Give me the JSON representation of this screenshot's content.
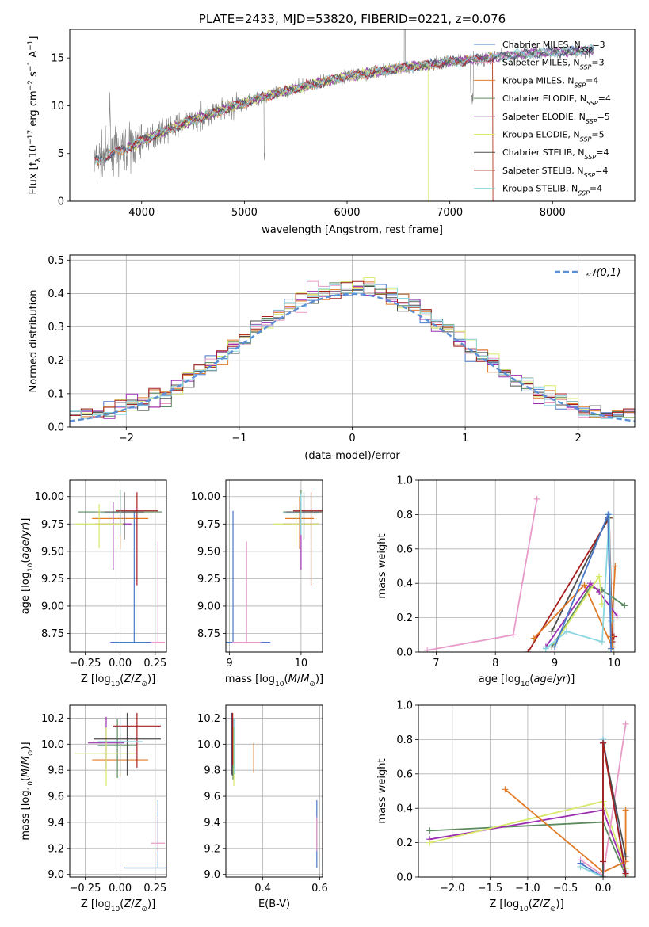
{
  "colors": {
    "spectrum": "#808080",
    "chabrier_miles": "#4a78c9",
    "salpeter_miles": "#e89bc8",
    "kroupa_miles": "#e07b28",
    "chabrier_elodie": "#5b8a5e",
    "salpeter_elodie": "#9b2fb0",
    "kroupa_elodie": "#d8e86a",
    "chabrier_stelib": "#4d4d4d",
    "salpeter_stelib": "#a51f1f",
    "kroupa_stelib": "#8ad6e0",
    "normal_curve": "#5b8fd6"
  },
  "chart_data": [
    {
      "id": "spectrum",
      "type": "line",
      "title": "PLATE=2433, MJD=53820, FIBERID=0221, z=0.076",
      "xlabel": "wavelength [Angstrom, rest frame]",
      "ylabel": "Flux [f_λ 10^-17 erg cm^-2 s^-1 A^-1]",
      "xlim": [
        3300,
        8800
      ],
      "ylim": [
        0,
        18
      ],
      "xticks": [
        4000,
        5000,
        6000,
        7000,
        8000
      ],
      "yticks": [
        0,
        5,
        10,
        15
      ],
      "grid": false,
      "legend_position": "top-right",
      "legend": [
        {
          "label": "Chabrier MILES, N",
          "sub": "SSP",
          "post": "=3",
          "color_key": "chabrier_miles"
        },
        {
          "label": "Salpeter MILES, N",
          "sub": "SSP",
          "post": "=3",
          "color_key": "salpeter_miles"
        },
        {
          "label": "Kroupa MILES, N",
          "sub": "SSP",
          "post": "=4",
          "color_key": "kroupa_miles"
        },
        {
          "label": "Chabrier ELODIE, N",
          "sub": "SSP",
          "post": "=4",
          "color_key": "chabrier_elodie"
        },
        {
          "label": "Salpeter ELODIE, N",
          "sub": "SSP",
          "post": "=5",
          "color_key": "salpeter_elodie"
        },
        {
          "label": "Kroupa ELODIE, N",
          "sub": "SSP",
          "post": "=5",
          "color_key": "kroupa_elodie"
        },
        {
          "label": "Chabrier STELIB, N",
          "sub": "SSP",
          "post": "=4",
          "color_key": "chabrier_stelib"
        },
        {
          "label": "Salpeter STELIB, N",
          "sub": "SSP",
          "post": "=4",
          "color_key": "salpeter_stelib"
        },
        {
          "label": "Kroupa STELIB, N",
          "sub": "SSP",
          "post": "=4",
          "color_key": "kroupa_stelib"
        }
      ],
      "continuum": {
        "x": [
          3540,
          3700,
          3900,
          4100,
          4300,
          4500,
          4800,
          5000,
          5200,
          5500,
          5800,
          6000,
          6300,
          6500,
          6800,
          7000,
          7200,
          7400,
          7600,
          7800,
          8000,
          8200,
          8400
        ],
        "y": [
          4.2,
          4.9,
          5.8,
          6.8,
          7.7,
          8.5,
          9.6,
          10.3,
          11.0,
          11.8,
          12.6,
          13.1,
          13.6,
          13.9,
          14.3,
          14.6,
          14.8,
          15.0,
          15.3,
          15.5,
          15.6,
          15.7,
          15.8
        ]
      }
    },
    {
      "id": "residuals",
      "type": "histogram",
      "xlabel": "(data-model)/error",
      "ylabel": "Normed distribution",
      "xlim": [
        -2.5,
        2.5
      ],
      "ylim": [
        0,
        0.515
      ],
      "xticks": [
        -2,
        -1,
        0,
        1,
        2
      ],
      "yticks": [
        0.0,
        0.1,
        0.2,
        0.3,
        0.4,
        0.5
      ],
      "grid": true,
      "legend_position": "top-right",
      "legend": [
        {
          "label": "𝒩(0,1)",
          "color_key": "normal_curve",
          "style": "dashed"
        }
      ]
    },
    {
      "id": "age_vs_Z",
      "type": "errorbar",
      "xlabel": "Z [log10(Z/Z⊙)]",
      "ylabel": "age [log10(age/yr)]",
      "xlim": [
        -0.36,
        0.33
      ],
      "ylim": [
        8.58,
        10.15
      ],
      "xticks": [
        -0.25,
        0.0,
        0.25
      ],
      "xtick_labels": [
        "−0.25",
        "0.00",
        "0.25"
      ],
      "yticks": [
        8.75,
        9.0,
        9.25,
        9.5,
        9.75,
        10.0
      ],
      "grid": true,
      "series": [
        {
          "color_key": "chabrier_miles",
          "x": 0.1,
          "y": 8.67,
          "xerr": 0.17,
          "yerr_lo": 0.0,
          "yerr_hi": 1.2
        },
        {
          "color_key": "salpeter_miles",
          "x": 0.27,
          "y": 8.67,
          "xerr": 0.05,
          "yerr_lo": 0.0,
          "yerr_hi": 0.92
        },
        {
          "color_key": "kroupa_miles",
          "x": 0.0,
          "y": 9.8,
          "xerr": 0.2,
          "yerr_lo": 0.28,
          "yerr_hi": 0.2
        },
        {
          "color_key": "chabrier_elodie",
          "x": 0.0,
          "y": 9.86,
          "xerr": 0.3,
          "yerr_lo": 0.21,
          "yerr_hi": 0.2
        },
        {
          "color_key": "salpeter_elodie",
          "x": -0.05,
          "y": 9.75,
          "xerr": 0.13,
          "yerr_lo": 0.42,
          "yerr_hi": 0.2
        },
        {
          "color_key": "kroupa_elodie",
          "x": -0.15,
          "y": 9.75,
          "xerr": 0.17,
          "yerr_lo": 0.22,
          "yerr_hi": 0.18
        },
        {
          "color_key": "chabrier_stelib",
          "x": 0.03,
          "y": 9.86,
          "xerr": 0.14,
          "yerr_lo": 0.25,
          "yerr_hi": 0.18
        },
        {
          "color_key": "salpeter_stelib",
          "x": 0.12,
          "y": 9.87,
          "xerr": 0.15,
          "yerr_lo": 0.68,
          "yerr_hi": 0.17
        },
        {
          "color_key": "kroupa_stelib",
          "x": 0.0,
          "y": 9.85,
          "xerr": 0.14,
          "yerr_lo": 0.2,
          "yerr_hi": 0.18
        }
      ]
    },
    {
      "id": "age_vs_mass",
      "type": "errorbar",
      "xlabel": "mass [log10(M/M⊙)]",
      "ylabel": "",
      "xlim": [
        8.95,
        10.3
      ],
      "ylim": [
        8.58,
        10.15
      ],
      "xticks": [
        9,
        10
      ],
      "yticks": [
        8.75,
        9.0,
        9.25,
        9.5,
        9.75,
        10.0
      ],
      "grid": true,
      "series": [
        {
          "color_key": "chabrier_miles",
          "x": 9.05,
          "y": 8.67,
          "xerr": 0.52,
          "yerr_lo": 0.0,
          "yerr_hi": 1.2
        },
        {
          "color_key": "salpeter_miles",
          "x": 9.24,
          "y": 8.67,
          "xerr": 0.2,
          "yerr_lo": 0.0,
          "yerr_hi": 0.92
        },
        {
          "color_key": "kroupa_miles",
          "x": 9.98,
          "y": 9.8,
          "xerr": 0.2,
          "yerr_lo": 0.28,
          "yerr_hi": 0.2
        },
        {
          "color_key": "chabrier_elodie",
          "x": 10.0,
          "y": 9.86,
          "xerr": 0.25,
          "yerr_lo": 0.21,
          "yerr_hi": 0.2
        },
        {
          "color_key": "salpeter_elodie",
          "x": 10.0,
          "y": 9.75,
          "xerr": 0.25,
          "yerr_lo": 0.42,
          "yerr_hi": 0.2
        },
        {
          "color_key": "kroupa_elodie",
          "x": 9.93,
          "y": 9.75,
          "xerr": 0.32,
          "yerr_lo": 0.22,
          "yerr_hi": 0.18
        },
        {
          "color_key": "chabrier_stelib",
          "x": 10.04,
          "y": 9.86,
          "xerr": 0.25,
          "yerr_lo": 0.25,
          "yerr_hi": 0.18
        },
        {
          "color_key": "salpeter_stelib",
          "x": 10.14,
          "y": 9.87,
          "xerr": 0.25,
          "yerr_lo": 0.68,
          "yerr_hi": 0.17
        },
        {
          "color_key": "kroupa_stelib",
          "x": 10.0,
          "y": 9.85,
          "xerr": 0.25,
          "yerr_lo": 0.2,
          "yerr_hi": 0.18
        }
      ]
    },
    {
      "id": "mass_weight_vs_age",
      "type": "line",
      "xlabel": "age [log10(age/yr)]",
      "ylabel": "mass weight",
      "xlim": [
        6.7,
        10.35
      ],
      "ylim": [
        0,
        1.0
      ],
      "xticks": [
        7,
        8,
        9,
        10
      ],
      "yticks": [
        0.0,
        0.2,
        0.4,
        0.6,
        0.8,
        1.0
      ],
      "grid": true,
      "series": [
        {
          "color_key": "salpeter_miles",
          "x": [
            6.85,
            8.3,
            8.7
          ],
          "y": [
            0.01,
            0.1,
            0.89
          ]
        },
        {
          "color_key": "salpeter_stelib",
          "x": [
            8.55,
            9.92,
            9.97,
            10.0
          ],
          "y": [
            0.0,
            0.78,
            0.06,
            0.09
          ]
        },
        {
          "color_key": "chabrier_stelib",
          "x": [
            8.95,
            9.9,
            9.95
          ],
          "y": [
            0.12,
            0.78,
            0.09
          ]
        },
        {
          "color_key": "kroupa_miles",
          "x": [
            8.65,
            9.5,
            9.97,
            9.95,
            10.02
          ],
          "y": [
            0.08,
            0.39,
            0.03,
            0.09,
            0.5
          ]
        },
        {
          "color_key": "chabrier_elodie",
          "x": [
            8.95,
            9.6,
            9.8,
            10.18
          ],
          "y": [
            0.03,
            0.38,
            0.36,
            0.27
          ]
        },
        {
          "color_key": "salpeter_elodie",
          "x": [
            8.85,
            9.6,
            9.75,
            10.05
          ],
          "y": [
            0.03,
            0.4,
            0.35,
            0.21
          ]
        },
        {
          "color_key": "kroupa_elodie",
          "x": [
            9.0,
            9.75,
            9.8
          ],
          "y": [
            0.05,
            0.44,
            0.28
          ]
        },
        {
          "color_key": "kroupa_stelib",
          "x": [
            8.85,
            9.2,
            9.8,
            9.92,
            9.95
          ],
          "y": [
            0.02,
            0.12,
            0.06,
            0.8,
            0.18
          ]
        },
        {
          "color_key": "chabrier_miles",
          "x": [
            9.0,
            9.9,
            9.95
          ],
          "y": [
            0.03,
            0.8,
            0.02
          ]
        }
      ]
    },
    {
      "id": "mass_vs_Z",
      "type": "errorbar",
      "xlabel": "Z [log10(Z/Z⊙)]",
      "ylabel": "mass [log10(M/M⊙)]",
      "xlim": [
        -0.36,
        0.33
      ],
      "ylim": [
        8.98,
        10.3
      ],
      "xticks": [
        -0.25,
        0.0,
        0.25
      ],
      "xtick_labels": [
        "−0.25",
        "0.00",
        "0.25"
      ],
      "yticks": [
        9.0,
        9.2,
        9.4,
        9.6,
        9.8,
        10.0,
        10.2
      ],
      "grid": true,
      "series": [
        {
          "color_key": "chabrier_miles",
          "x": 0.27,
          "y": 9.05,
          "xerr": 0.24,
          "yerr_lo": 0.0,
          "yerr_hi": 0.52
        },
        {
          "color_key": "salpeter_miles",
          "x": 0.27,
          "y": 9.24,
          "xerr": 0.05,
          "yerr_lo": 0.06,
          "yerr_hi": 0.2
        },
        {
          "color_key": "kroupa_miles",
          "x": 0.0,
          "y": 9.88,
          "xerr": 0.2,
          "yerr_lo": 0.13,
          "yerr_hi": 0.2
        },
        {
          "color_key": "chabrier_elodie",
          "x": -0.02,
          "y": 9.99,
          "xerr": 0.14,
          "yerr_lo": 0.25,
          "yerr_hi": 0.2
        },
        {
          "color_key": "salpeter_elodie",
          "x": -0.1,
          "y": 10.01,
          "xerr": 0.13,
          "yerr_lo": 0.2,
          "yerr_hi": 0.2
        },
        {
          "color_key": "kroupa_elodie",
          "x": -0.1,
          "y": 9.93,
          "xerr": 0.22,
          "yerr_lo": 0.25,
          "yerr_hi": 0.2
        },
        {
          "color_key": "chabrier_stelib",
          "x": 0.05,
          "y": 10.04,
          "xerr": 0.24,
          "yerr_lo": 0.28,
          "yerr_hi": 0.2
        },
        {
          "color_key": "salpeter_stelib",
          "x": 0.12,
          "y": 10.14,
          "xerr": 0.17,
          "yerr_lo": 0.32,
          "yerr_hi": 0.1
        },
        {
          "color_key": "kroupa_stelib",
          "x": 0.0,
          "y": 10.02,
          "xerr": 0.16,
          "yerr_lo": 0.25,
          "yerr_hi": 0.18
        }
      ]
    },
    {
      "id": "mass_vs_EBV",
      "type": "errorbar",
      "xlabel": "E(B-V)",
      "ylabel": "",
      "xlim": [
        0.27,
        0.61
      ],
      "ylim": [
        8.98,
        10.3
      ],
      "xticks": [
        0.4,
        0.6
      ],
      "yticks": [
        9.0,
        9.2,
        9.4,
        9.6,
        9.8,
        10.0,
        10.2
      ],
      "grid": true,
      "series": [
        {
          "color_key": "chabrier_miles",
          "x": 0.59,
          "y": 9.05,
          "xerr": 0.0,
          "yerr_lo": 0.0,
          "yerr_hi": 0.52
        },
        {
          "color_key": "salpeter_miles",
          "x": 0.59,
          "y": 9.24,
          "xerr": 0.0,
          "yerr_lo": 0.06,
          "yerr_hi": 0.2
        },
        {
          "color_key": "kroupa_miles",
          "x": 0.368,
          "y": 9.88,
          "xerr": 0.0,
          "yerr_lo": 0.1,
          "yerr_hi": 0.13
        },
        {
          "color_key": "chabrier_elodie",
          "x": 0.295,
          "y": 10.0,
          "xerr": 0.0,
          "yerr_lo": 0.27,
          "yerr_hi": 0.2
        },
        {
          "color_key": "salpeter_elodie",
          "x": 0.29,
          "y": 10.02,
          "xerr": 0.0,
          "yerr_lo": 0.25,
          "yerr_hi": 0.22
        },
        {
          "color_key": "kroupa_elodie",
          "x": 0.298,
          "y": 9.93,
          "xerr": 0.0,
          "yerr_lo": 0.25,
          "yerr_hi": 0.2
        },
        {
          "color_key": "chabrier_stelib",
          "x": 0.292,
          "y": 10.04,
          "xerr": 0.0,
          "yerr_lo": 0.28,
          "yerr_hi": 0.2
        },
        {
          "color_key": "salpeter_stelib",
          "x": 0.294,
          "y": 10.14,
          "xerr": 0.0,
          "yerr_lo": 0.3,
          "yerr_hi": 0.1
        },
        {
          "color_key": "kroupa_stelib",
          "x": 0.3,
          "y": 10.02,
          "xerr": 0.0,
          "yerr_lo": 0.25,
          "yerr_hi": 0.18
        }
      ]
    },
    {
      "id": "mass_weight_vs_Z",
      "type": "line",
      "xlabel": "Z [log10(Z/Z⊙)]",
      "ylabel": "mass weight",
      "xlim": [
        -2.45,
        0.42
      ],
      "ylim": [
        0,
        1.0
      ],
      "xticks": [
        -2.0,
        -1.5,
        -1.0,
        -0.5,
        0.0
      ],
      "xtick_labels": [
        "−2.0",
        "−1.5",
        "−1.0",
        "−0.5",
        "0.0"
      ],
      "yticks": [
        0.0,
        0.2,
        0.4,
        0.6,
        0.8,
        1.0
      ],
      "grid": true,
      "series": [
        {
          "color_key": "chabrier_elodie",
          "x": [
            -2.3,
            0.0,
            0.3
          ],
          "y": [
            0.27,
            0.32,
            0.01
          ]
        },
        {
          "color_key": "salpeter_elodie",
          "x": [
            -2.3,
            0.0,
            0.3
          ],
          "y": [
            0.22,
            0.39,
            0.03
          ]
        },
        {
          "color_key": "kroupa_elodie",
          "x": [
            -2.3,
            0.0,
            0.3
          ],
          "y": [
            0.2,
            0.44,
            0.05
          ]
        },
        {
          "color_key": "kroupa_miles",
          "x": [
            -1.3,
            0.0,
            0.3,
            0.3
          ],
          "y": [
            0.51,
            0.03,
            0.09,
            0.39
          ]
        },
        {
          "color_key": "salpeter_miles",
          "x": [
            -0.3,
            0.0,
            0.3
          ],
          "y": [
            0.1,
            0.01,
            0.89
          ]
        },
        {
          "color_key": "chabrier_miles",
          "x": [
            -0.3,
            0.0,
            0.0,
            0.3
          ],
          "y": [
            0.08,
            0.0,
            0.8,
            0.03
          ]
        },
        {
          "color_key": "kroupa_stelib",
          "x": [
            -0.3,
            0.0,
            0.0
          ],
          "y": [
            0.06,
            0.0,
            0.8
          ]
        },
        {
          "color_key": "chabrier_stelib",
          "x": [
            0.0,
            0.0,
            0.3
          ],
          "y": [
            0.0,
            0.78,
            0.12
          ]
        },
        {
          "color_key": "salpeter_stelib",
          "x": [
            0.0,
            0.0,
            0.3
          ],
          "y": [
            0.09,
            0.78,
            0.02
          ]
        }
      ]
    }
  ]
}
